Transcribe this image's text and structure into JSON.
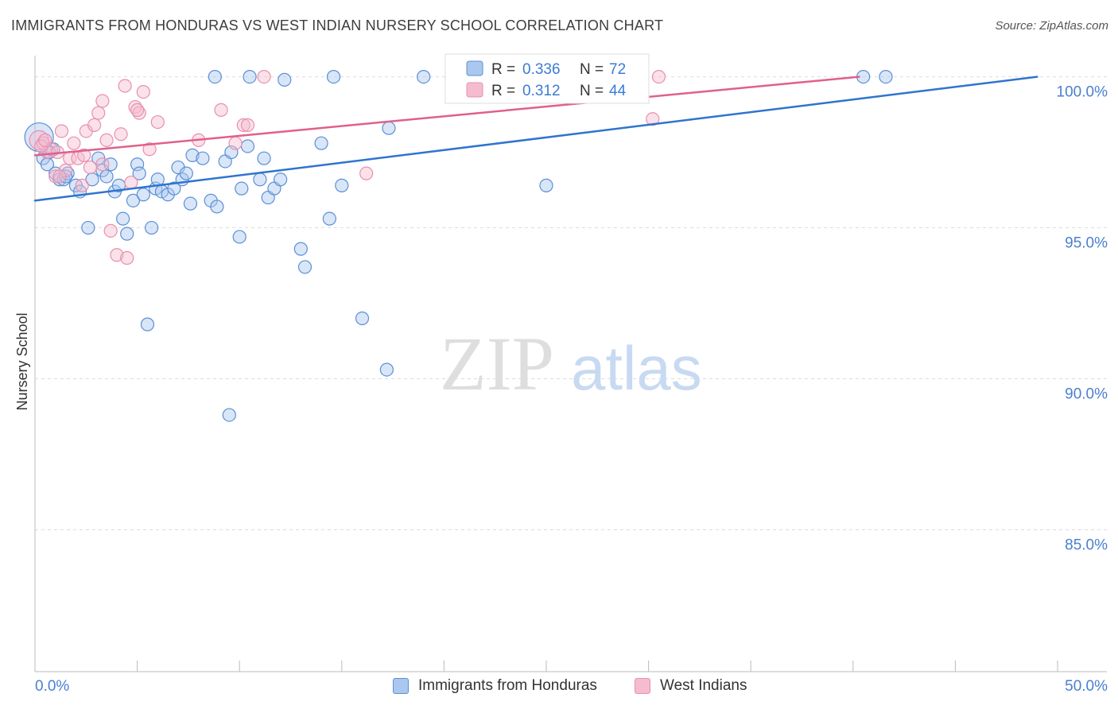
{
  "title": "IMMIGRANTS FROM HONDURAS VS WEST INDIAN NURSERY SCHOOL CORRELATION CHART",
  "source": "Source: ZipAtlas.com",
  "watermark": {
    "zip": "ZIP",
    "atlas": "atlas"
  },
  "colors": {
    "blue": "#5b8fd6",
    "blue_fill": "#aac8ef",
    "blue_line": "#2f74cf",
    "pink": "#e890ae",
    "pink_fill": "#f5bcd0",
    "pink_line": "#e0608a",
    "tick_label": "#4a7fd0"
  },
  "legend": {
    "r_label": "R =",
    "n_label": "N =",
    "rows": [
      {
        "r": "0.336",
        "n": "72"
      },
      {
        "r": "0.312",
        "n": "44"
      }
    ]
  },
  "chart_data": {
    "type": "scatter",
    "ylabel": "Nursery School",
    "xlim": [
      0,
      50
    ],
    "ylim": [
      80.3,
      100.7
    ],
    "x_tick_labels": [
      {
        "value": 0,
        "label": "0.0%"
      },
      {
        "value": 50,
        "label": "50.0%"
      }
    ],
    "y_tick_labels": [
      {
        "value": 100,
        "label": "100.0%"
      },
      {
        "value": 95,
        "label": "95.0%"
      },
      {
        "value": 90,
        "label": "90.0%"
      },
      {
        "value": 85,
        "label": "85.0%"
      }
    ],
    "grid": true,
    "legend_placement": "top-center",
    "series": [
      {
        "name": "Immigrants from Honduras",
        "color": "#5b8fd6",
        "trend": {
          "x": [
            0,
            49
          ],
          "y": [
            95.9,
            100.0
          ]
        },
        "points": [
          [
            0.2,
            98.0
          ],
          [
            0.4,
            97.3
          ],
          [
            0.6,
            97.1
          ],
          [
            0.9,
            97.6
          ],
          [
            1.0,
            96.8
          ],
          [
            1.2,
            96.6
          ],
          [
            1.4,
            96.6
          ],
          [
            1.6,
            96.8
          ],
          [
            2.0,
            96.4
          ],
          [
            2.2,
            96.2
          ],
          [
            2.6,
            95.0
          ],
          [
            2.8,
            96.6
          ],
          [
            3.1,
            97.3
          ],
          [
            3.3,
            96.9
          ],
          [
            3.5,
            96.7
          ],
          [
            3.7,
            97.1
          ],
          [
            3.9,
            96.2
          ],
          [
            4.1,
            96.4
          ],
          [
            4.3,
            95.3
          ],
          [
            4.5,
            94.8
          ],
          [
            4.8,
            95.9
          ],
          [
            5.0,
            97.1
          ],
          [
            5.1,
            96.8
          ],
          [
            5.3,
            96.1
          ],
          [
            5.5,
            91.8
          ],
          [
            5.7,
            95.0
          ],
          [
            5.9,
            96.3
          ],
          [
            6.0,
            96.6
          ],
          [
            6.2,
            96.2
          ],
          [
            6.5,
            96.1
          ],
          [
            6.8,
            96.3
          ],
          [
            7.0,
            97.0
          ],
          [
            7.2,
            96.6
          ],
          [
            7.4,
            96.8
          ],
          [
            7.6,
            95.8
          ],
          [
            7.7,
            97.4
          ],
          [
            8.2,
            97.3
          ],
          [
            8.6,
            95.9
          ],
          [
            8.8,
            100.0
          ],
          [
            8.9,
            95.7
          ],
          [
            9.3,
            97.2
          ],
          [
            9.5,
            88.8
          ],
          [
            9.6,
            97.5
          ],
          [
            10.0,
            94.7
          ],
          [
            10.1,
            96.3
          ],
          [
            10.4,
            97.7
          ],
          [
            10.5,
            100.0
          ],
          [
            11.0,
            96.6
          ],
          [
            11.2,
            97.3
          ],
          [
            11.4,
            96.0
          ],
          [
            11.7,
            96.3
          ],
          [
            12.0,
            96.6
          ],
          [
            12.2,
            99.9
          ],
          [
            13.0,
            94.3
          ],
          [
            13.2,
            93.7
          ],
          [
            14.0,
            97.8
          ],
          [
            14.4,
            95.3
          ],
          [
            14.6,
            100.0
          ],
          [
            15.0,
            96.4
          ],
          [
            16.0,
            92.0
          ],
          [
            17.2,
            90.3
          ],
          [
            17.3,
            98.3
          ],
          [
            19.0,
            100.0
          ],
          [
            22.3,
            100.0
          ],
          [
            22.8,
            100.0
          ],
          [
            25.0,
            96.4
          ],
          [
            28.0,
            100.0
          ],
          [
            40.5,
            100.0
          ],
          [
            41.6,
            100.0
          ],
          [
            0.7,
            97.5
          ],
          [
            1.5,
            96.7
          ],
          [
            24.0,
            100.0
          ]
        ]
      },
      {
        "name": "West Indians",
        "color": "#e890ae",
        "trend": {
          "x": [
            0,
            40.3
          ],
          "y": [
            97.4,
            100.0
          ]
        },
        "points": [
          [
            0.2,
            97.9
          ],
          [
            0.4,
            97.8
          ],
          [
            0.6,
            97.5
          ],
          [
            0.8,
            97.6
          ],
          [
            1.0,
            96.7
          ],
          [
            1.1,
            97.5
          ],
          [
            1.3,
            98.2
          ],
          [
            1.5,
            96.9
          ],
          [
            1.7,
            97.3
          ],
          [
            1.9,
            97.8
          ],
          [
            2.1,
            97.3
          ],
          [
            2.3,
            96.4
          ],
          [
            2.5,
            98.2
          ],
          [
            2.7,
            97.0
          ],
          [
            2.9,
            98.4
          ],
          [
            3.1,
            98.8
          ],
          [
            3.3,
            99.2
          ],
          [
            3.5,
            97.9
          ],
          [
            3.7,
            94.9
          ],
          [
            4.0,
            94.1
          ],
          [
            4.2,
            98.1
          ],
          [
            4.4,
            99.7
          ],
          [
            4.5,
            94.0
          ],
          [
            4.7,
            96.5
          ],
          [
            4.9,
            99.0
          ],
          [
            5.1,
            98.8
          ],
          [
            5.3,
            99.5
          ],
          [
            5.6,
            97.6
          ],
          [
            6.0,
            98.5
          ],
          [
            8.0,
            97.9
          ],
          [
            9.1,
            98.9
          ],
          [
            9.8,
            97.8
          ],
          [
            10.2,
            98.4
          ],
          [
            10.4,
            98.4
          ],
          [
            11.2,
            100.0
          ],
          [
            16.2,
            96.8
          ],
          [
            30.2,
            98.6
          ],
          [
            30.5,
            100.0
          ],
          [
            0.3,
            97.7
          ],
          [
            1.2,
            96.7
          ],
          [
            2.4,
            97.4
          ],
          [
            5.0,
            98.9
          ],
          [
            0.5,
            97.9
          ],
          [
            3.3,
            97.1
          ]
        ]
      }
    ]
  }
}
